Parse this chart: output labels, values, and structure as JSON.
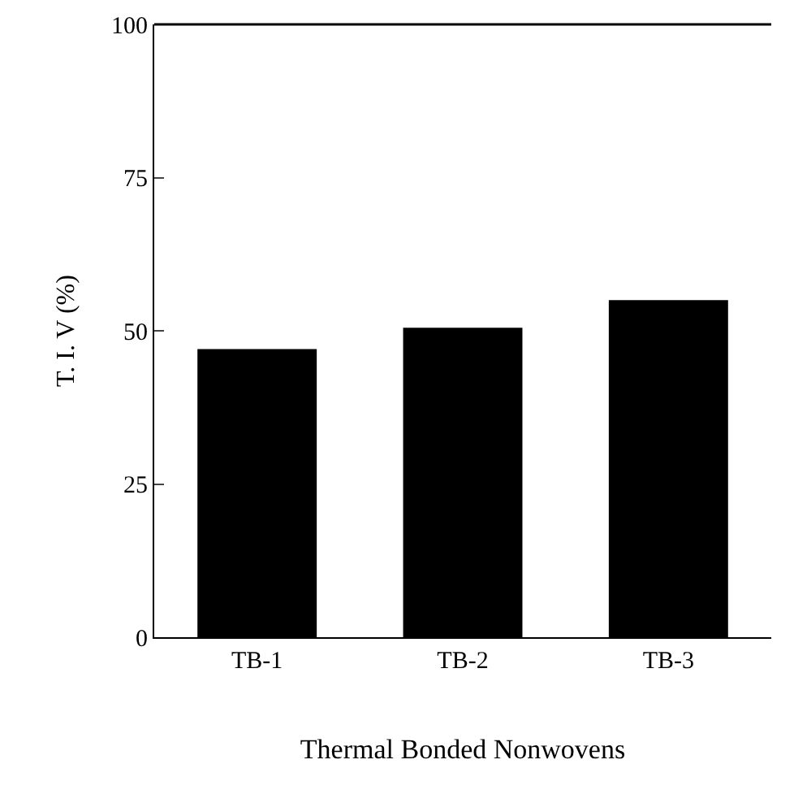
{
  "chart_data": {
    "type": "bar",
    "xlabel": "Thermal Bonded Nonwovens",
    "ylabel": "T. I. V (%)",
    "categories": [
      "TB-1",
      "TB-2",
      "TB-3"
    ],
    "values": [
      47,
      50.5,
      55
    ],
    "color": "#000000",
    "ylim": [
      0,
      100
    ],
    "yticks": [
      0,
      25,
      50,
      75,
      100
    ],
    "grid": false
  }
}
